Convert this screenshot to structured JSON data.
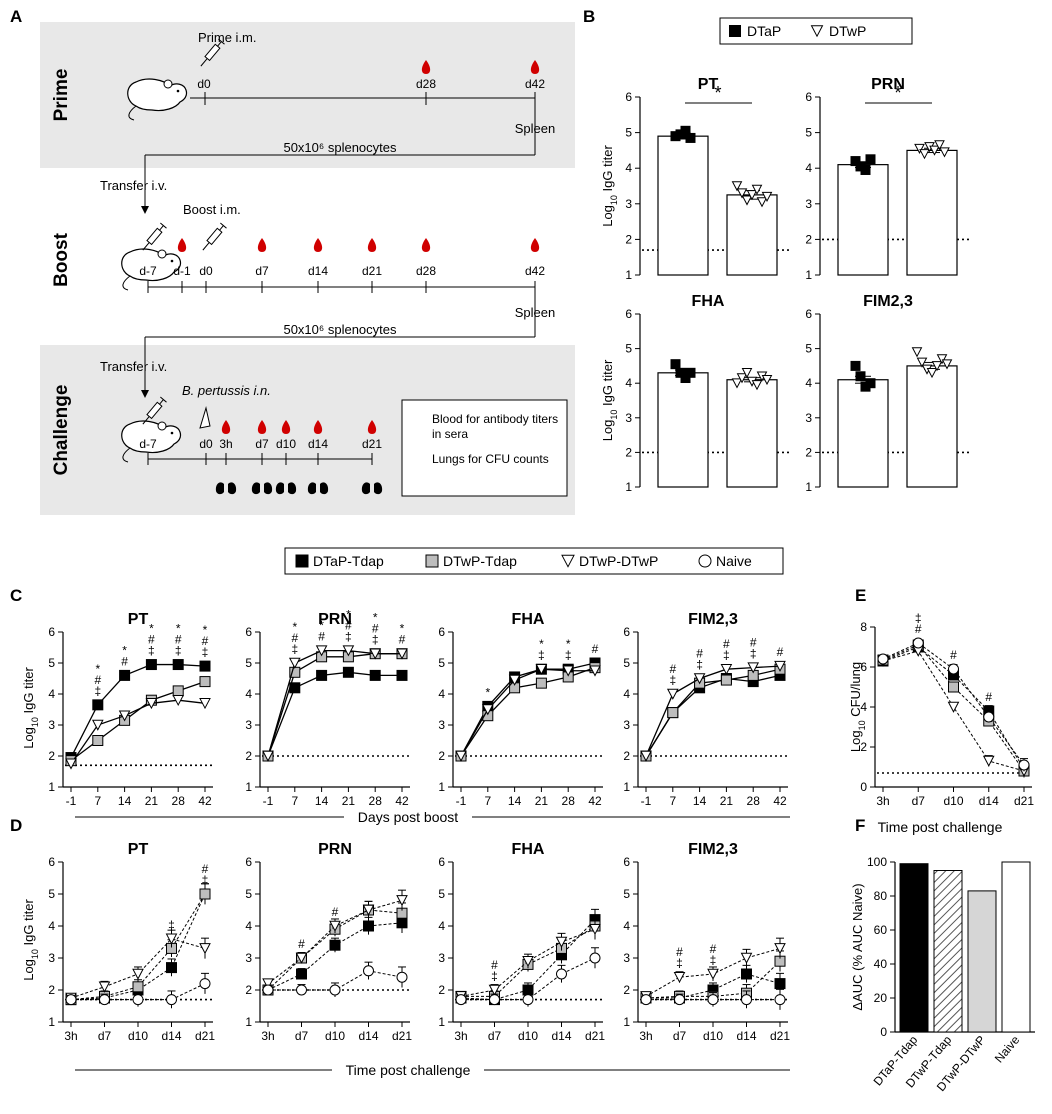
{
  "panel_letters": {
    "a": "A",
    "b": "B",
    "c": "C",
    "d": "D",
    "e": "E",
    "f": "F"
  },
  "schematic": {
    "prime": {
      "title": "Prime",
      "injection": "Prime i.m.",
      "days": [
        "d0",
        "d28",
        "d42"
      ],
      "harvest": "Spleen",
      "transfer_cells": "50x10⁶ splenocytes"
    },
    "boost": {
      "title": "Boost",
      "transfer": "Transfer i.v.",
      "injection": "Boost i.m.",
      "days": [
        "d-7",
        "d-1",
        "d0",
        "d7",
        "d14",
        "d21",
        "d28",
        "d42"
      ],
      "harvest": "Spleen",
      "transfer_cells": "50x10⁶ splenocytes"
    },
    "challenge": {
      "title": "Challenge",
      "transfer": "Transfer i.v.",
      "infection": "B. pertussis i.n.",
      "days": [
        "d-7",
        "d0",
        "3h",
        "d7",
        "d10",
        "d14",
        "d21"
      ],
      "legend_blood": "Blood for antibody titers in sera",
      "legend_lungs": "Lungs for CFU counts"
    }
  },
  "chart_data": [
    {
      "panel": "B",
      "type": "bar",
      "legend": [
        "DTaP",
        "DTwP"
      ],
      "ylabel": "Log10 IgG titer",
      "ylim": [
        1,
        6
      ],
      "subplots": [
        {
          "title": "PT",
          "categories": [
            "DTaP",
            "DTwP"
          ],
          "values": [
            4.9,
            3.25
          ],
          "errors": [
            0.08,
            0.12
          ],
          "lod": 1.7,
          "significance": "*",
          "points": [
            [
              4.9,
              4.95,
              5.05,
              4.85
            ],
            [
              3.5,
              3.3,
              3.1,
              3.25,
              3.4,
              3.05,
              3.2
            ]
          ]
        },
        {
          "title": "PRN",
          "categories": [
            "DTaP",
            "DTwP"
          ],
          "values": [
            4.1,
            4.5
          ],
          "errors": [
            0.08,
            0.06
          ],
          "lod": 2.0,
          "significance": "*",
          "points": [
            [
              4.2,
              4.05,
              3.95,
              4.25
            ],
            [
              4.55,
              4.4,
              4.6,
              4.5,
              4.65,
              4.45
            ]
          ]
        },
        {
          "title": "FHA",
          "categories": [
            "DTaP",
            "DTwP"
          ],
          "values": [
            4.3,
            4.1
          ],
          "errors": [
            0.08,
            0.06
          ],
          "lod": 2.0,
          "significance": "",
          "points": [
            [
              4.55,
              4.3,
              4.15,
              4.3
            ],
            [
              4.0,
              4.15,
              4.3,
              4.05,
              3.95,
              4.2,
              4.1
            ]
          ]
        },
        {
          "title": "FIM2,3",
          "categories": [
            "DTaP",
            "DTwP"
          ],
          "values": [
            4.1,
            4.5
          ],
          "errors": [
            0.1,
            0.1
          ],
          "lod": 2.0,
          "significance": "",
          "points": [
            [
              4.5,
              4.2,
              3.9,
              4.0
            ],
            [
              4.9,
              4.6,
              4.4,
              4.3,
              4.5,
              4.7,
              4.55
            ]
          ]
        }
      ]
    },
    {
      "panel": "C",
      "type": "line",
      "legend": [
        "DTaP-Tdap",
        "DTwP-Tdap",
        "DTwP-DTwP",
        "Naive"
      ],
      "x": [
        "-1",
        "7",
        "14",
        "21",
        "28",
        "42"
      ],
      "xlabel": "Days post boost",
      "ylabel": "Log10 IgG titer",
      "ylim": [
        1,
        6
      ],
      "subplots": [
        {
          "title": "PT",
          "lod": 1.7,
          "series": [
            {
              "name": "DTaP-Tdap",
              "values": [
                1.95,
                3.65,
                4.6,
                4.95,
                4.95,
                4.9
              ]
            },
            {
              "name": "DTwP-Tdap",
              "values": [
                1.85,
                2.5,
                3.15,
                3.8,
                4.1,
                4.4
              ]
            },
            {
              "name": "DTwP-DTwP",
              "values": [
                1.75,
                3.0,
                3.3,
                3.7,
                3.8,
                3.7
              ]
            }
          ],
          "annotations": [
            {
              "x": "7",
              "marks": [
                "*",
                "#",
                "‡"
              ]
            },
            {
              "x": "14",
              "marks": [
                "*",
                "#"
              ]
            },
            {
              "x": "21",
              "marks": [
                "*",
                "#",
                "‡"
              ]
            },
            {
              "x": "28",
              "marks": [
                "*",
                "#",
                "‡"
              ]
            },
            {
              "x": "42",
              "marks": [
                "*",
                "#",
                "‡"
              ]
            }
          ]
        },
        {
          "title": "PRN",
          "lod": 2.0,
          "series": [
            {
              "name": "DTaP-Tdap",
              "values": [
                2.0,
                4.2,
                4.6,
                4.7,
                4.6,
                4.6
              ]
            },
            {
              "name": "DTwP-Tdap",
              "values": [
                2.0,
                4.7,
                5.2,
                5.2,
                5.3,
                5.3
              ]
            },
            {
              "name": "DTwP-DTwP",
              "values": [
                2.0,
                5.0,
                5.4,
                5.4,
                5.3,
                5.3
              ]
            }
          ],
          "annotations": [
            {
              "x": "7",
              "marks": [
                "*",
                "#",
                "‡"
              ]
            },
            {
              "x": "14",
              "marks": [
                "*",
                "#"
              ]
            },
            {
              "x": "21",
              "marks": [
                "*",
                "#",
                "‡"
              ]
            },
            {
              "x": "28",
              "marks": [
                "*",
                "#",
                "‡"
              ]
            },
            {
              "x": "42",
              "marks": [
                "*",
                "#"
              ]
            }
          ]
        },
        {
          "title": "FHA",
          "lod": 2.0,
          "series": [
            {
              "name": "DTaP-Tdap",
              "values": [
                2.0,
                3.6,
                4.55,
                4.8,
                4.8,
                5.0
              ]
            },
            {
              "name": "DTwP-Tdap",
              "values": [
                2.0,
                3.3,
                4.2,
                4.35,
                4.55,
                4.85
              ]
            },
            {
              "name": "DTwP-DTwP",
              "values": [
                2.0,
                3.5,
                4.45,
                4.8,
                4.75,
                4.75
              ]
            }
          ],
          "annotations": [
            {
              "x": "7",
              "marks": [
                "*"
              ]
            },
            {
              "x": "21",
              "marks": [
                "*",
                "‡"
              ]
            },
            {
              "x": "28",
              "marks": [
                "*",
                "‡"
              ]
            },
            {
              "x": "42",
              "marks": [
                "#"
              ]
            }
          ]
        },
        {
          "title": "FIM2,3",
          "lod": 2.0,
          "series": [
            {
              "name": "DTaP-Tdap",
              "values": [
                2.0,
                3.4,
                4.2,
                4.5,
                4.4,
                4.6
              ]
            },
            {
              "name": "DTwP-Tdap",
              "values": [
                2.0,
                3.4,
                4.35,
                4.45,
                4.6,
                4.8
              ]
            },
            {
              "name": "DTwP-DTwP",
              "values": [
                2.0,
                4.0,
                4.5,
                4.8,
                4.85,
                4.9
              ]
            }
          ],
          "annotations": [
            {
              "x": "7",
              "marks": [
                "#",
                "‡"
              ]
            },
            {
              "x": "14",
              "marks": [
                "#",
                "‡"
              ]
            },
            {
              "x": "21",
              "marks": [
                "#",
                "‡"
              ]
            },
            {
              "x": "28",
              "marks": [
                "#",
                "‡"
              ]
            },
            {
              "x": "42",
              "marks": [
                "#"
              ]
            }
          ]
        }
      ]
    },
    {
      "panel": "D",
      "type": "line",
      "legend": [
        "DTaP-Tdap",
        "DTwP-Tdap",
        "DTwP-DTwP",
        "Naive"
      ],
      "x": [
        "3h",
        "d7",
        "d10",
        "d14",
        "d21"
      ],
      "xlabel": "Time post challenge",
      "ylabel": "Log10 IgG titer",
      "ylim": [
        1,
        6
      ],
      "subplots": [
        {
          "title": "PT",
          "lod": 1.7,
          "series": [
            {
              "name": "DTaP-Tdap",
              "values": [
                1.7,
                1.75,
                2.0,
                2.7,
                5.0
              ]
            },
            {
              "name": "DTwP-Tdap",
              "values": [
                1.7,
                1.8,
                2.1,
                3.3,
                5.0
              ]
            },
            {
              "name": "DTwP-DTwP",
              "values": [
                1.75,
                2.1,
                2.5,
                3.6,
                3.3
              ]
            },
            {
              "name": "Naive",
              "values": [
                1.7,
                1.7,
                1.7,
                1.7,
                2.2
              ]
            }
          ],
          "annotations": [
            {
              "x": "d14",
              "marks": [
                "‡"
              ]
            },
            {
              "x": "d21",
              "marks": [
                "#",
                "‡"
              ]
            }
          ]
        },
        {
          "title": "PRN",
          "lod": 2.0,
          "series": [
            {
              "name": "DTaP-Tdap",
              "values": [
                2.0,
                2.5,
                3.4,
                4.0,
                4.1
              ]
            },
            {
              "name": "DTwP-Tdap",
              "values": [
                2.0,
                3.0,
                3.9,
                4.5,
                4.4
              ]
            },
            {
              "name": "DTwP-DTwP",
              "values": [
                2.2,
                3.0,
                4.0,
                4.5,
                4.8
              ]
            },
            {
              "name": "Naive",
              "values": [
                2.0,
                2.0,
                2.0,
                2.6,
                2.4
              ]
            }
          ],
          "annotations": [
            {
              "x": "d7",
              "marks": [
                "#"
              ]
            },
            {
              "x": "d10",
              "marks": [
                "#"
              ]
            }
          ]
        },
        {
          "title": "FHA",
          "lod": 1.7,
          "series": [
            {
              "name": "DTaP-Tdap",
              "values": [
                1.75,
                1.7,
                2.0,
                3.1,
                4.2
              ]
            },
            {
              "name": "DTwP-Tdap",
              "values": [
                1.8,
                1.8,
                2.8,
                3.3,
                4.0
              ]
            },
            {
              "name": "DTwP-DTwP",
              "values": [
                1.8,
                2.0,
                2.9,
                3.5,
                3.9
              ]
            },
            {
              "name": "Naive",
              "values": [
                1.7,
                1.7,
                1.7,
                2.5,
                3.0
              ]
            }
          ],
          "annotations": [
            {
              "x": "d7",
              "marks": [
                "#",
                "‡"
              ]
            }
          ]
        },
        {
          "title": "FIM2,3",
          "lod": 1.7,
          "series": [
            {
              "name": "DTaP-Tdap",
              "values": [
                1.75,
                1.75,
                2.0,
                2.5,
                2.2
              ]
            },
            {
              "name": "DTwP-Tdap",
              "values": [
                1.75,
                1.8,
                1.8,
                1.9,
                2.9
              ]
            },
            {
              "name": "DTwP-DTwP",
              "values": [
                1.8,
                2.4,
                2.5,
                3.0,
                3.3
              ]
            },
            {
              "name": "Naive",
              "values": [
                1.7,
                1.7,
                1.7,
                1.7,
                1.7
              ]
            }
          ],
          "annotations": [
            {
              "x": "d7",
              "marks": [
                "#",
                "‡"
              ]
            },
            {
              "x": "d10",
              "marks": [
                "#",
                "‡"
              ]
            }
          ]
        }
      ]
    },
    {
      "panel": "E",
      "type": "line",
      "title": "",
      "x": [
        "3h",
        "d7",
        "d10",
        "d14",
        "d21"
      ],
      "xlabel": "Time post challenge",
      "ylabel": "Log10 CFU/lung",
      "ylim": [
        0,
        8
      ],
      "yticks": [
        0,
        2,
        4,
        6,
        8
      ],
      "lod": 0.7,
      "series": [
        {
          "name": "DTaP-Tdap",
          "values": [
            6.3,
            7.0,
            5.6,
            3.8,
            0.9
          ]
        },
        {
          "name": "DTwP-Tdap",
          "values": [
            6.35,
            7.1,
            5.0,
            3.3,
            0.8
          ]
        },
        {
          "name": "DTwP-DTwP",
          "values": [
            6.3,
            6.8,
            4.0,
            1.3,
            0.8
          ]
        },
        {
          "name": "Naive",
          "values": [
            6.4,
            7.2,
            5.9,
            3.5,
            1.1
          ]
        }
      ],
      "annotations": [
        {
          "x": "d7",
          "marks": [
            "‡",
            "#"
          ]
        },
        {
          "x": "d10",
          "marks": [
            "#"
          ]
        },
        {
          "x": "d14",
          "marks": [
            "#"
          ]
        }
      ]
    },
    {
      "panel": "F",
      "type": "bar",
      "categories": [
        "DTaP-Tdap",
        "DTwP-Tdap",
        "DTwP-DTwP",
        "Naive"
      ],
      "values": [
        99,
        95,
        83,
        100
      ],
      "ylabel": "ΔAUC (% AUC Naive)",
      "ylim": [
        0,
        100
      ],
      "yticks": [
        0,
        20,
        40,
        60,
        80,
        100
      ]
    }
  ],
  "colors": {
    "dtap": "#000000",
    "dtwp_tdap": "#bdbdbd",
    "dtwp_dtwp": "#ffffff",
    "naive": "#ffffff",
    "schematic_bg": "#e8e8e8",
    "blood": "#d00000"
  }
}
